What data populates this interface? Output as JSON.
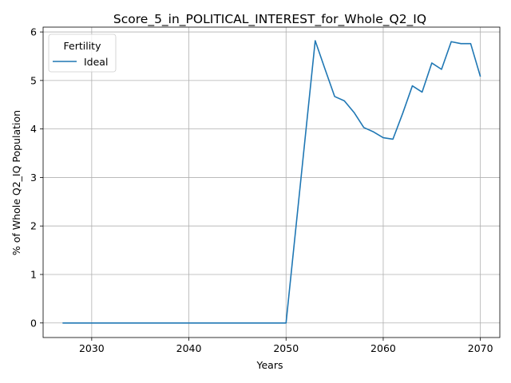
{
  "chart_data": {
    "type": "line",
    "title": "Score_5_in_POLITICAL_INTEREST_for_Whole_Q2_IQ",
    "xlabel": "Years",
    "ylabel": "% of Whole Q2_IQ Population",
    "xlim": [
      2025,
      2072
    ],
    "ylim": [
      -0.3,
      6.1
    ],
    "xticks": [
      2030,
      2040,
      2050,
      2060,
      2070
    ],
    "yticks": [
      0,
      1,
      2,
      3,
      4,
      5,
      6
    ],
    "grid": true,
    "legend": {
      "title": "Fertility",
      "placement": "upper-left"
    },
    "series": [
      {
        "name": "Ideal",
        "color": "#1f77b4",
        "x": [
          2027,
          2028,
          2029,
          2030,
          2031,
          2032,
          2033,
          2034,
          2035,
          2036,
          2037,
          2038,
          2039,
          2040,
          2041,
          2042,
          2043,
          2044,
          2045,
          2046,
          2047,
          2048,
          2049,
          2050,
          2051,
          2052,
          2053,
          2054,
          2055,
          2056,
          2057,
          2058,
          2059,
          2060,
          2061,
          2062,
          2063,
          2064,
          2065,
          2066,
          2067,
          2068,
          2069,
          2070
        ],
        "y": [
          0,
          0,
          0,
          0,
          0,
          0,
          0,
          0,
          0,
          0,
          0,
          0,
          0,
          0,
          0,
          0,
          0,
          0,
          0,
          0,
          0,
          0,
          0,
          0,
          1.94,
          3.88,
          5.82,
          5.24,
          4.67,
          4.58,
          4.34,
          4.03,
          3.94,
          3.82,
          3.79,
          4.32,
          4.89,
          4.76,
          5.36,
          5.23,
          5.8,
          5.76,
          5.76,
          5.08
        ]
      }
    ]
  }
}
